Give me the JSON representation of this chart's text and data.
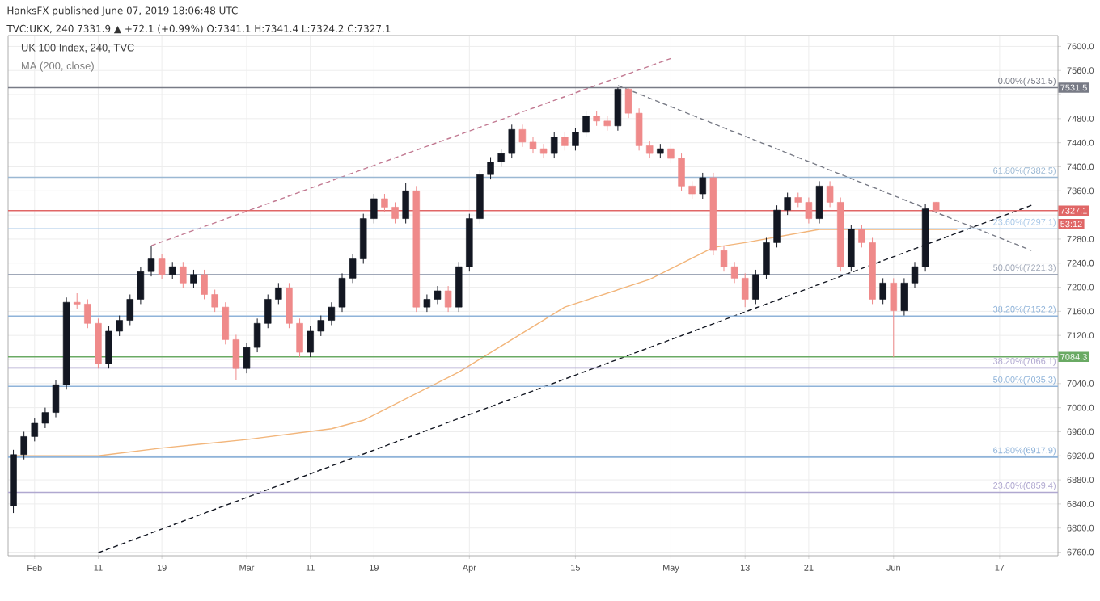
{
  "chart_data": {
    "type": "candlestick",
    "title": "UK 100 Index, 240, TVC",
    "subtitle": "MA (200, close)",
    "annotations": [
      "HanksFX published June 07, 2019 18:06:48 UTC",
      "TVC:UKX, 240 7331.9 ▲ +72.1 (+0.99%) O:7341.1 H:7341.4 L:7324.2 C:7327.1",
      {
        "text": "7531.5",
        "y": 7531.5
      },
      {
        "text": "7327.1",
        "y": 7327.1
      },
      {
        "text": "53:12",
        "y": 7305
      },
      {
        "text": "7084.3",
        "y": 7084.3
      }
    ],
    "categories": [
      null,
      null,
      "Feb",
      null,
      null,
      null,
      null,
      null,
      "11",
      null,
      null,
      null,
      null,
      null,
      "19",
      null,
      null,
      null,
      null,
      null,
      null,
      null,
      "Mar",
      null,
      null,
      null,
      null,
      null,
      "11",
      null,
      null,
      null,
      null,
      null,
      "19",
      null,
      null,
      null,
      null,
      null,
      null,
      null,
      null,
      "Apr",
      null,
      null,
      null,
      null,
      null,
      null,
      null,
      null,
      null,
      "15",
      null,
      null,
      null,
      null,
      null,
      null,
      null,
      null,
      "May",
      null,
      null,
      null,
      null,
      null,
      null,
      "13",
      null,
      null,
      null,
      null,
      null,
      "21",
      null,
      null,
      null,
      null,
      null,
      null,
      null,
      "Jun",
      null,
      null,
      null,
      null,
      null,
      null,
      null,
      null,
      null,
      "17",
      null,
      null,
      null,
      null,
      null
    ],
    "ohlc": [
      [
        6837,
        6930,
        6825,
        6922
      ],
      [
        6922,
        6960,
        6914,
        6952
      ],
      [
        6952,
        6982,
        6944,
        6974
      ],
      [
        6974,
        7000,
        6966,
        6992
      ],
      [
        6992,
        7046,
        6984,
        7038
      ],
      [
        7038,
        7183,
        7030,
        7175
      ],
      [
        7175,
        7190,
        7164,
        7172
      ],
      [
        7172,
        7180,
        7132,
        7140
      ],
      [
        7140,
        7148,
        7065,
        7073
      ],
      [
        7073,
        7135,
        7065,
        7127
      ],
      [
        7127,
        7153,
        7119,
        7145
      ],
      [
        7145,
        7188,
        7137,
        7180
      ],
      [
        7180,
        7234,
        7172,
        7226
      ],
      [
        7226,
        7269,
        7218,
        7247
      ],
      [
        7247,
        7255,
        7213,
        7221
      ],
      [
        7221,
        7242,
        7213,
        7234
      ],
      [
        7234,
        7242,
        7199,
        7207
      ],
      [
        7207,
        7229,
        7199,
        7221
      ],
      [
        7221,
        7229,
        7180,
        7188
      ],
      [
        7188,
        7196,
        7159,
        7167
      ],
      [
        7167,
        7175,
        7105,
        7113
      ],
      [
        7113,
        7121,
        7046,
        7065
      ],
      [
        7065,
        7108,
        7057,
        7100
      ],
      [
        7100,
        7148,
        7092,
        7140
      ],
      [
        7140,
        7188,
        7132,
        7180
      ],
      [
        7180,
        7207,
        7172,
        7199
      ],
      [
        7199,
        7207,
        7132,
        7140
      ],
      [
        7140,
        7148,
        7084,
        7092
      ],
      [
        7092,
        7135,
        7084,
        7127
      ],
      [
        7127,
        7153,
        7119,
        7145
      ],
      [
        7145,
        7175,
        7137,
        7167
      ],
      [
        7167,
        7223,
        7159,
        7215
      ],
      [
        7215,
        7255,
        7207,
        7247
      ],
      [
        7247,
        7322,
        7239,
        7314
      ],
      [
        7314,
        7355,
        7306,
        7347
      ],
      [
        7347,
        7355,
        7325,
        7333
      ],
      [
        7333,
        7341,
        7306,
        7314
      ],
      [
        7314,
        7373,
        7306,
        7360
      ],
      [
        7360,
        7368,
        7159,
        7167
      ],
      [
        7167,
        7188,
        7159,
        7180
      ],
      [
        7180,
        7202,
        7172,
        7194
      ],
      [
        7194,
        7202,
        7159,
        7167
      ],
      [
        7167,
        7242,
        7159,
        7234
      ],
      [
        7234,
        7322,
        7226,
        7314
      ],
      [
        7314,
        7395,
        7306,
        7387
      ],
      [
        7387,
        7416,
        7379,
        7408
      ],
      [
        7408,
        7430,
        7400,
        7422
      ],
      [
        7422,
        7470,
        7414,
        7462
      ],
      [
        7462,
        7470,
        7433,
        7441
      ],
      [
        7441,
        7449,
        7422,
        7430
      ],
      [
        7430,
        7438,
        7414,
        7422
      ],
      [
        7422,
        7457,
        7414,
        7449
      ],
      [
        7449,
        7457,
        7427,
        7435
      ],
      [
        7435,
        7465,
        7427,
        7457
      ],
      [
        7457,
        7492,
        7449,
        7484
      ],
      [
        7484,
        7492,
        7468,
        7476
      ],
      [
        7476,
        7484,
        7460,
        7468
      ],
      [
        7468,
        7531.5,
        7460,
        7529
      ],
      [
        7529,
        7531,
        7481,
        7489
      ],
      [
        7489,
        7497,
        7427,
        7435
      ],
      [
        7435,
        7443,
        7414,
        7422
      ],
      [
        7422,
        7438,
        7414,
        7430
      ],
      [
        7430,
        7438,
        7406,
        7414
      ],
      [
        7414,
        7422,
        7360,
        7368
      ],
      [
        7368,
        7376,
        7347,
        7355
      ],
      [
        7355,
        7390,
        7347,
        7382
      ],
      [
        7382,
        7390,
        7253,
        7261
      ],
      [
        7261,
        7269,
        7226,
        7234
      ],
      [
        7234,
        7242,
        7207,
        7215
      ],
      [
        7215,
        7223,
        7167,
        7180
      ],
      [
        7180,
        7229,
        7172,
        7221
      ],
      [
        7221,
        7282,
        7213,
        7274
      ],
      [
        7274,
        7336,
        7266,
        7328
      ],
      [
        7328,
        7357,
        7320,
        7349
      ],
      [
        7349,
        7357,
        7333,
        7341
      ],
      [
        7341,
        7349,
        7306,
        7314
      ],
      [
        7314,
        7376,
        7306,
        7368
      ],
      [
        7368,
        7376,
        7333,
        7341
      ],
      [
        7341,
        7349,
        7226,
        7234
      ],
      [
        7234,
        7304,
        7226,
        7296
      ],
      [
        7296,
        7304,
        7266,
        7274
      ],
      [
        7274,
        7282,
        7172,
        7180
      ],
      [
        7180,
        7215,
        7172,
        7207
      ],
      [
        7207,
        7215,
        7084,
        7161
      ],
      [
        7161,
        7215,
        7153,
        7207
      ],
      [
        7207,
        7242,
        7199,
        7234
      ],
      [
        7234,
        7338,
        7226,
        7330
      ],
      [
        7341.1,
        7341.4,
        7324.2,
        7327.1
      ],
      null,
      null,
      null,
      null,
      null,
      null,
      null,
      null,
      null,
      null,
      null
    ],
    "colors": [
      "#131722",
      "#131722",
      "#131722",
      "#131722",
      "#131722",
      "#131722",
      "#ef8a8a",
      "#ef8a8a",
      "#ef8a8a",
      "#131722",
      "#131722",
      "#131722",
      "#131722",
      "#131722",
      "#ef8a8a",
      "#131722",
      "#ef8a8a",
      "#131722",
      "#ef8a8a",
      "#ef8a8a",
      "#ef8a8a",
      "#ef8a8a",
      "#131722",
      "#131722",
      "#131722",
      "#131722",
      "#ef8a8a",
      "#ef8a8a",
      "#131722",
      "#131722",
      "#131722",
      "#131722",
      "#131722",
      "#131722",
      "#131722",
      "#ef8a8a",
      "#ef8a8a",
      "#131722",
      "#ef8a8a",
      "#131722",
      "#131722",
      "#ef8a8a",
      "#131722",
      "#131722",
      "#131722",
      "#131722",
      "#131722",
      "#131722",
      "#ef8a8a",
      "#ef8a8a",
      "#ef8a8a",
      "#131722",
      "#ef8a8a",
      "#131722",
      "#131722",
      "#ef8a8a",
      "#ef8a8a",
      "#131722",
      "#ef8a8a",
      "#ef8a8a",
      "#ef8a8a",
      "#131722",
      "#ef8a8a",
      "#ef8a8a",
      "#ef8a8a",
      "#131722",
      "#ef8a8a",
      "#ef8a8a",
      "#ef8a8a",
      "#ef8a8a",
      "#131722",
      "#131722",
      "#131722",
      "#131722",
      "#ef8a8a",
      "#ef8a8a",
      "#131722",
      "#ef8a8a",
      "#ef8a8a",
      "#131722",
      "#ef8a8a",
      "#ef8a8a",
      "#131722",
      "#ef8a8a",
      "#131722",
      "#131722",
      "#131722",
      "#ef8a8a",
      null,
      null,
      null,
      null,
      null,
      null,
      null,
      null,
      null,
      null,
      null
    ],
    "series": [
      {
        "type": "line",
        "color": "#f2b57a",
        "line_style": "solid",
        "values": [
          6920,
          null,
          null,
          null,
          null,
          null,
          null,
          null,
          6920,
          null,
          null,
          null,
          null,
          null,
          6933,
          null,
          null,
          null,
          null,
          null,
          null,
          null,
          6947,
          null,
          null,
          null,
          null,
          null,
          null,
          null,
          6965,
          null,
          null,
          6979,
          null,
          null,
          null,
          null,
          null,
          null,
          null,
          null,
          7059,
          null,
          null,
          null,
          null,
          null,
          null,
          null,
          null,
          null,
          7167,
          null,
          null,
          null,
          null,
          null,
          null,
          null,
          7213,
          null,
          null,
          null,
          null,
          null,
          7266,
          null,
          null,
          7274,
          null,
          null,
          null,
          null,
          null,
          null,
          7296,
          null,
          null,
          null,
          null,
          null,
          null,
          null,
          null,
          null,
          null,
          null,
          null,
          7296,
          null,
          null,
          null,
          null,
          null,
          null,
          null,
          null,
          null
        ]
      },
      {
        "type": "line",
        "color": "#c27a92",
        "line_style": "dashed",
        "values": [
          null,
          null,
          null,
          null,
          null,
          null,
          null,
          null,
          null,
          null,
          null,
          null,
          null,
          7269,
          null,
          null,
          null,
          null,
          null,
          null,
          null,
          null,
          null,
          null,
          null,
          null,
          null,
          null,
          null,
          null,
          null,
          null,
          null,
          null,
          null,
          null,
          null,
          null,
          null,
          null,
          null,
          null,
          null,
          null,
          null,
          null,
          null,
          null,
          null,
          null,
          null,
          null,
          null,
          null,
          null,
          null,
          null,
          null,
          null,
          null,
          null,
          null,
          7580,
          null,
          null,
          null,
          null,
          null,
          null,
          null,
          null,
          null,
          null,
          null,
          null,
          null,
          null,
          null,
          null,
          null,
          null,
          null,
          null,
          null,
          null,
          null,
          null,
          null,
          null,
          null,
          null,
          null,
          null,
          null,
          null,
          null,
          null,
          null,
          null
        ]
      },
      {
        "type": "line",
        "color": "#787b86",
        "line_style": "dashed",
        "values": [
          null,
          null,
          null,
          null,
          null,
          null,
          null,
          null,
          null,
          null,
          null,
          null,
          null,
          null,
          null,
          null,
          null,
          null,
          null,
          null,
          null,
          null,
          null,
          null,
          null,
          null,
          null,
          null,
          null,
          null,
          null,
          null,
          null,
          null,
          null,
          null,
          null,
          null,
          null,
          null,
          null,
          null,
          null,
          null,
          null,
          null,
          null,
          null,
          null,
          null,
          null,
          null,
          null,
          null,
          null,
          null,
          null,
          7535,
          null,
          null,
          null,
          null,
          null,
          null,
          null,
          null,
          null,
          null,
          null,
          null,
          null,
          null,
          null,
          null,
          null,
          null,
          null,
          null,
          null,
          null,
          null,
          null,
          null,
          null,
          null,
          null,
          null,
          null,
          null,
          null,
          null,
          null,
          null,
          null,
          null,
          null,
          7261,
          null,
          null
        ]
      },
      {
        "type": "line",
        "color": "#131722",
        "line_style": "dashed",
        "values": [
          null,
          null,
          null,
          null,
          null,
          null,
          null,
          null,
          6759,
          null,
          null,
          null,
          null,
          null,
          null,
          null,
          null,
          null,
          null,
          null,
          null,
          null,
          null,
          null,
          null,
          null,
          null,
          null,
          null,
          null,
          null,
          null,
          null,
          null,
          null,
          null,
          null,
          null,
          null,
          null,
          null,
          null,
          null,
          null,
          null,
          null,
          null,
          null,
          null,
          null,
          null,
          null,
          null,
          null,
          null,
          null,
          null,
          null,
          null,
          null,
          null,
          null,
          null,
          null,
          null,
          null,
          null,
          null,
          null,
          null,
          null,
          null,
          null,
          null,
          null,
          null,
          null,
          null,
          null,
          null,
          null,
          null,
          null,
          null,
          null,
          null,
          null,
          null,
          null,
          null,
          null,
          null,
          null,
          null,
          null,
          null,
          7336,
          null,
          null
        ]
      }
    ],
    "ref_lines": [
      {
        "axis": "y",
        "value": 7531.5,
        "label": "0.00%(7531.5)",
        "color": "#787b86"
      },
      {
        "axis": "y",
        "value": 7382.5,
        "label": "61.80%(7382.5)",
        "color": "#9bb8d3"
      },
      {
        "axis": "y",
        "value": 7297.1,
        "label": "23.60%(7297.1)",
        "color": "#a8c8e8"
      },
      {
        "axis": "y",
        "value": 7221.3,
        "label": "50.00%(7221.3)",
        "color": "#a0a8b8"
      },
      {
        "axis": "y",
        "value": 7152.2,
        "label": "38.20%(7152.2)",
        "color": "#8fb3d9"
      },
      {
        "axis": "y",
        "value": 7066.1,
        "label": "38.20%(7066.1)",
        "color": "#b0a8d0"
      },
      {
        "axis": "y",
        "value": 7035.3,
        "label": "50.00%(7035.3)",
        "color": "#8fb3d9"
      },
      {
        "axis": "y",
        "value": 6917.9,
        "label": "61.80%(6917.9)",
        "color": "#8fb3d9"
      },
      {
        "axis": "y",
        "value": 6859.4,
        "label": "23.60%(6859.4)",
        "color": "#b0a8d0"
      },
      {
        "axis": "y",
        "value": 7327.1,
        "color": "#e06666"
      },
      {
        "axis": "y",
        "value": 7084.3,
        "color": "#6aaa64"
      }
    ],
    "ylim": [
      6754,
      7618
    ],
    "yticks": [
      {
        "value": 7600,
        "label": "7600.0"
      },
      {
        "value": 7560,
        "label": "7560.0"
      },
      {
        "value": 7520,
        "label": null
      },
      {
        "value": 7480,
        "label": "7480.0"
      },
      {
        "value": 7440,
        "label": "7440.0"
      },
      {
        "value": 7400,
        "label": "7400.0"
      },
      {
        "value": 7360,
        "label": "7360.0"
      },
      {
        "value": 7320,
        "label": null
      },
      {
        "value": 7280,
        "label": "7280.0"
      },
      {
        "value": 7240,
        "label": "7240.0"
      },
      {
        "value": 7200,
        "label": "7200.0"
      },
      {
        "value": 7160,
        "label": "7160.0"
      },
      {
        "value": 7120,
        "label": "7120.0"
      },
      {
        "value": 7080,
        "label": null
      },
      {
        "value": 7040,
        "label": "7040.0"
      },
      {
        "value": 7000,
        "label": "7000.0"
      },
      {
        "value": 6960,
        "label": "6960.0"
      },
      {
        "value": 6920,
        "label": "6920.0"
      },
      {
        "value": 6880,
        "label": "6880.0"
      },
      {
        "value": 6840,
        "label": "6840.0"
      },
      {
        "value": 6800,
        "label": "6800.0"
      },
      {
        "value": 6760,
        "label": "6760.0"
      }
    ],
    "grid": true
  }
}
